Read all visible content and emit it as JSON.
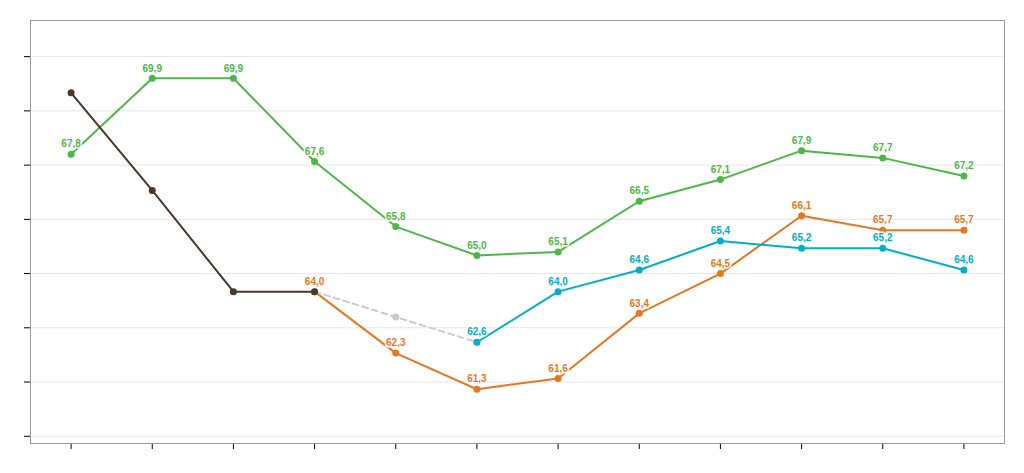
{
  "chart_data": {
    "type": "line",
    "x": [
      1,
      2,
      3,
      4,
      5,
      6,
      7,
      8,
      9,
      10,
      11,
      12
    ],
    "series": [
      {
        "color": "#4db848",
        "marker": "circle",
        "line_style": "solid",
        "x": [
          1,
          2,
          3,
          4,
          5,
          6,
          7,
          8,
          9,
          10,
          11,
          12
        ],
        "values": [
          67.8,
          69.9,
          69.9,
          67.6,
          65.8,
          65.0,
          65.1,
          66.5,
          67.1,
          67.9,
          67.7,
          67.2
        ],
        "value_labels": [
          "67,8",
          "69,9",
          "69,9",
          "67,6",
          "65,8",
          "65,0",
          "65,1",
          "66,5",
          "67,1",
          "67,9",
          "67,7",
          "67,2"
        ]
      },
      {
        "color": "#e87722",
        "marker": "circle",
        "line_style": "solid",
        "x": [
          4,
          5,
          6,
          7,
          8,
          9,
          10,
          11,
          12
        ],
        "values": [
          64.0,
          62.3,
          61.3,
          61.6,
          63.4,
          64.5,
          66.1,
          65.7,
          65.7
        ],
        "value_labels": [
          "64,0",
          "62,3",
          "61,3",
          "61,6",
          "63,4",
          "64,5",
          "66,1",
          "65,7",
          "65,7"
        ]
      },
      {
        "color": "#cccccc",
        "marker": "circle",
        "line_style": "dashed",
        "data_labels": false,
        "x": [
          4,
          5,
          6
        ],
        "values": [
          64.0,
          63.3,
          62.6
        ]
      },
      {
        "color": "#00b0c8",
        "marker": "circle",
        "line_style": "solid",
        "x": [
          6,
          7,
          8,
          9,
          10,
          11,
          12
        ],
        "values": [
          62.6,
          64.0,
          64.6,
          65.4,
          65.2,
          65.2,
          64.6
        ],
        "value_labels": [
          "62,6",
          "64,0",
          "64,6",
          "65,4",
          "65,2",
          "65,2",
          "64,6"
        ]
      },
      {
        "color": "#4a3728",
        "marker": "circle",
        "line_style": "solid",
        "data_labels": false,
        "x": [
          1,
          2,
          3,
          4
        ],
        "values": [
          69.5,
          66.8,
          64.0,
          64.0
        ]
      }
    ],
    "xlim": [
      0.5,
      12.5
    ],
    "xticks": [
      1,
      2,
      3,
      4,
      5,
      6,
      7,
      8,
      9,
      10,
      11,
      12
    ],
    "ylim": [
      59.8,
      71.5
    ],
    "yticks": [
      60,
      61.5,
      63,
      64.5,
      66,
      67.5,
      69,
      70.5
    ],
    "grid": "y",
    "tick_labels": false,
    "data_labels": true
  }
}
